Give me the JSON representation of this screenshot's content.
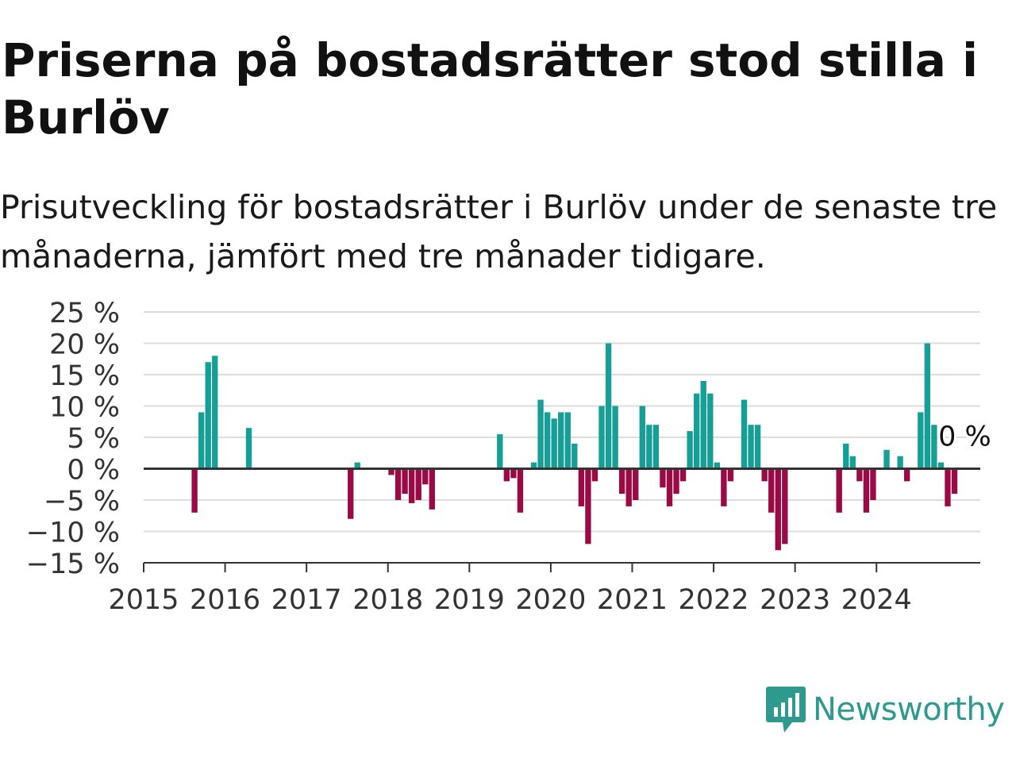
{
  "title": "Priserna på bostadsrätter stod stilla i Burlöv",
  "subtitle": "Prisutveckling för bostadsrätter i Burlöv under de senaste tre månaderna, jämfört med tre månader tidigare.",
  "logo": {
    "text": "Newsworthy",
    "icon": "newsworthy-chart-bubble-icon"
  },
  "colors": {
    "positive": "#159f97",
    "negative": "#9a0b45",
    "grid": "#dddddd",
    "axis": "#333333"
  },
  "chart_data": {
    "type": "bar",
    "ylim": [
      -15,
      25
    ],
    "yticks": [
      25,
      20,
      15,
      10,
      5,
      0,
      -5,
      -10,
      -15
    ],
    "ytick_labels": [
      "25 %",
      "20 %",
      "15 %",
      "10 %",
      "5 %",
      "0 %",
      "−5 %",
      "−10 %",
      "−15 %"
    ],
    "xticks": [
      "2015",
      "2016",
      "2017",
      "2018",
      "2019",
      "2020",
      "2021",
      "2022",
      "2023",
      "2024"
    ],
    "xlim": [
      "2015-01",
      "2025-06"
    ],
    "grid": true,
    "annotation": {
      "text": "0 %",
      "date": "2024-09",
      "value": 1
    },
    "points": [
      [
        "2015-08",
        -7
      ],
      [
        "2015-09",
        9
      ],
      [
        "2015-10",
        17
      ],
      [
        "2015-11",
        18
      ],
      [
        "2016-04",
        6.5
      ],
      [
        "2017-07",
        -8
      ],
      [
        "2017-08",
        1
      ],
      [
        "2018-01",
        -1
      ],
      [
        "2018-02",
        -5
      ],
      [
        "2018-03",
        -4
      ],
      [
        "2018-04",
        -5.5
      ],
      [
        "2018-05",
        -5
      ],
      [
        "2018-06",
        -2.5
      ],
      [
        "2018-07",
        -6.5
      ],
      [
        "2019-05",
        5.5
      ],
      [
        "2019-06",
        -2
      ],
      [
        "2019-07",
        -1.5
      ],
      [
        "2019-08",
        -7
      ],
      [
        "2019-10",
        1
      ],
      [
        "2019-11",
        11
      ],
      [
        "2019-12",
        9
      ],
      [
        "2020-01",
        8
      ],
      [
        "2020-02",
        9
      ],
      [
        "2020-03",
        9
      ],
      [
        "2020-04",
        4
      ],
      [
        "2020-05",
        -6
      ],
      [
        "2020-06",
        -12
      ],
      [
        "2020-07",
        -2
      ],
      [
        "2020-08",
        10
      ],
      [
        "2020-09",
        20
      ],
      [
        "2020-10",
        10
      ],
      [
        "2020-11",
        -4
      ],
      [
        "2020-12",
        -6
      ],
      [
        "2021-01",
        -5
      ],
      [
        "2021-02",
        10
      ],
      [
        "2021-03",
        7
      ],
      [
        "2021-04",
        7
      ],
      [
        "2021-05",
        -3
      ],
      [
        "2021-06",
        -6
      ],
      [
        "2021-07",
        -4
      ],
      [
        "2021-08",
        -2
      ],
      [
        "2021-09",
        6
      ],
      [
        "2021-10",
        12
      ],
      [
        "2021-11",
        14
      ],
      [
        "2021-12",
        12
      ],
      [
        "2022-01",
        1
      ],
      [
        "2022-02",
        -6
      ],
      [
        "2022-03",
        -2
      ],
      [
        "2022-05",
        11
      ],
      [
        "2022-06",
        7
      ],
      [
        "2022-07",
        7
      ],
      [
        "2022-08",
        -2
      ],
      [
        "2022-09",
        -7
      ],
      [
        "2022-10",
        -13
      ],
      [
        "2022-11",
        -12
      ],
      [
        "2023-07",
        -7
      ],
      [
        "2023-08",
        4
      ],
      [
        "2023-09",
        2
      ],
      [
        "2023-10",
        -2
      ],
      [
        "2023-11",
        -7
      ],
      [
        "2023-12",
        -5
      ],
      [
        "2024-02",
        3
      ],
      [
        "2024-04",
        2
      ],
      [
        "2024-05",
        -2
      ],
      [
        "2024-07",
        9
      ],
      [
        "2024-08",
        20
      ],
      [
        "2024-09",
        7
      ],
      [
        "2024-10",
        1
      ],
      [
        "2024-11",
        -6
      ],
      [
        "2024-12",
        -4
      ]
    ]
  }
}
